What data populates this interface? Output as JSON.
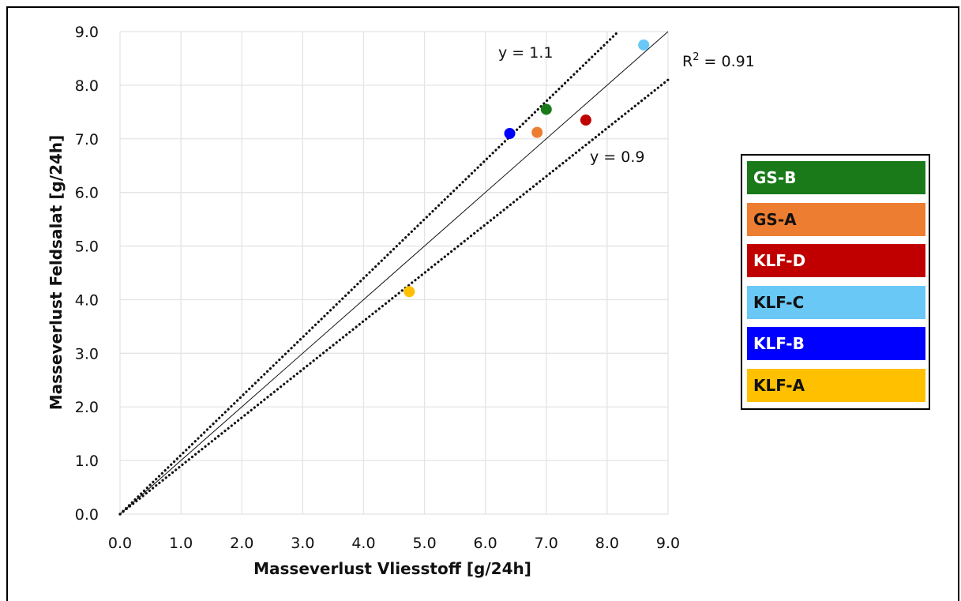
{
  "chart_data": {
    "type": "scatter",
    "xlabel": "Masseverlust Vliesstoff [g/24h]",
    "ylabel": "Masseverlust Feldsalat [g/24h]",
    "xlim": [
      0,
      9
    ],
    "ylim": [
      0,
      9
    ],
    "x_ticks": [
      "0.0",
      "1.0",
      "2.0",
      "3.0",
      "4.0",
      "5.0",
      "6.0",
      "7.0",
      "8.0",
      "9.0"
    ],
    "y_ticks": [
      "0.0",
      "1.0",
      "2.0",
      "3.0",
      "4.0",
      "5.0",
      "6.0",
      "7.0",
      "8.0",
      "9.0"
    ],
    "grid": true,
    "series": [
      {
        "name": "GS-B",
        "x": 7.0,
        "y": 7.55,
        "color": "#1a7a1a",
        "text_color": "#ffffff"
      },
      {
        "name": "GS-A",
        "x": 6.85,
        "y": 7.12,
        "color": "#ed7d31",
        "text_color": "#111111"
      },
      {
        "name": "KLF-D",
        "x": 7.65,
        "y": 7.35,
        "color": "#c00000",
        "text_color": "#ffffff"
      },
      {
        "name": "KLF-C",
        "x": 8.6,
        "y": 8.75,
        "color": "#69c8f5",
        "text_color": "#111111"
      },
      {
        "name": "KLF-B",
        "x": 6.4,
        "y": 7.1,
        "color": "#0000ff",
        "text_color": "#ffffff"
      },
      {
        "name": "KLF-A",
        "x": 4.75,
        "y": 4.15,
        "color": "#ffc000",
        "text_color": "#111111"
      }
    ],
    "reference_lines": [
      {
        "label": "y = 1.1",
        "slope": 1.1,
        "style": "dotted"
      },
      {
        "label": "y = 0.9",
        "slope": 0.9,
        "style": "dotted"
      },
      {
        "label": "R2 = 0.91",
        "slope": 1.0,
        "style": "solid"
      }
    ],
    "r2_label": {
      "prefix": "R",
      "sup": "2",
      "suffix": " = 0.91"
    },
    "legend_position": "right"
  }
}
